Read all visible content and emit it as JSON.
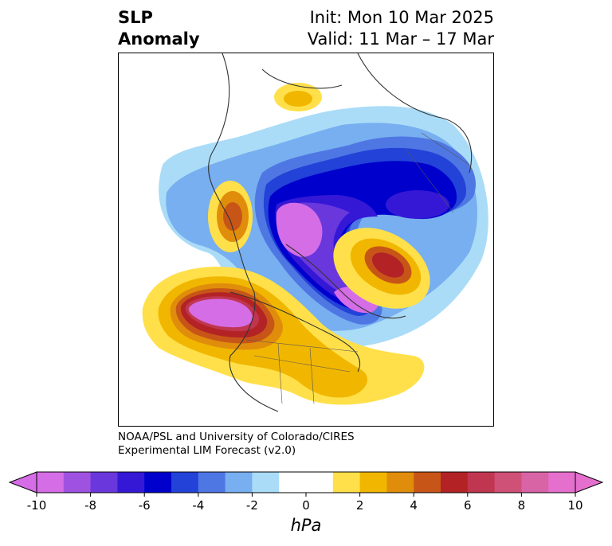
{
  "title": {
    "left_line1": "SLP",
    "left_line2": "Anomaly",
    "right_line1": "Init: Mon 10 Mar 2025",
    "right_line2": "Valid: 11 Mar – 17 Mar"
  },
  "credit": {
    "line1": "NOAA/PSL and University of Colorado/CIRES",
    "line2": "Experimental LIM Forecast (v2.0)"
  },
  "colorbar": {
    "colors": [
      "#d56de6",
      "#9f52e0",
      "#6a37dc",
      "#3418d6",
      "#0000cd",
      "#2342d8",
      "#4f77e3",
      "#77aff0",
      "#aadcf8",
      "#ffffff",
      "#ffffff",
      "#ffe04a",
      "#f1b700",
      "#e08d0c",
      "#c85518",
      "#b32326",
      "#c03650",
      "#cf5178",
      "#d864a6",
      "#e56fcd"
    ],
    "ticks": [
      "-10",
      "-8",
      "-6",
      "-4",
      "-2",
      "0",
      "2",
      "4",
      "6",
      "8",
      "10"
    ],
    "units": "hPa"
  }
}
